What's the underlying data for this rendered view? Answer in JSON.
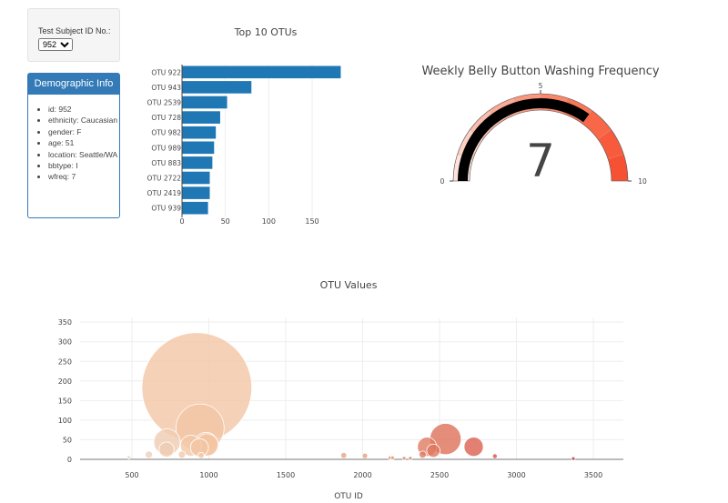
{
  "selector": {
    "label": "Test Subject ID No.:",
    "selected": "952"
  },
  "demographic": {
    "title": "Demographic Info",
    "items": [
      "id: 952",
      "ethnicity: Caucasian",
      "gender: F",
      "age: 51",
      "location: Seattle/WA",
      "bbtype: I",
      "wfreq: 7"
    ]
  },
  "colors": {
    "bar": "#1f77b4",
    "panel": "#337ab7",
    "gauge_needle": "#000000"
  },
  "chart_data": [
    {
      "type": "bar",
      "orientation": "horizontal",
      "title": "Top 10 OTUs",
      "categories": [
        "OTU 922",
        "OTU 943",
        "OTU 2539",
        "OTU 728",
        "OTU 982",
        "OTU 989",
        "OTU 883",
        "OTU 2722",
        "OTU 2419",
        "OTU 939"
      ],
      "values": [
        183,
        80,
        52,
        44,
        39,
        37,
        35,
        32,
        32,
        30
      ],
      "xticks": [
        0,
        50,
        100,
        150
      ],
      "xlim": [
        0,
        190
      ],
      "grid": true
    },
    {
      "type": "gauge",
      "title": "Weekly Belly Button Washing Frequency",
      "value": 7,
      "range": [
        0,
        10
      ],
      "ticks": [
        0,
        5,
        10
      ],
      "steps": [
        {
          "range": [
            0,
            1
          ],
          "color": "#fde2dc"
        },
        {
          "range": [
            1,
            2
          ],
          "color": "#fcd0c4"
        },
        {
          "range": [
            2,
            3
          ],
          "color": "#fbbdac"
        },
        {
          "range": [
            3,
            4
          ],
          "color": "#fbaa95"
        },
        {
          "range": [
            4,
            5
          ],
          "color": "#fa987f"
        },
        {
          "range": [
            5,
            6
          ],
          "color": "#f98769"
        },
        {
          "range": [
            6,
            7
          ],
          "color": "#f97756"
        },
        {
          "range": [
            7,
            8
          ],
          "color": "#f86848"
        },
        {
          "range": [
            8,
            9
          ],
          "color": "#f75b3c"
        },
        {
          "range": [
            9,
            10
          ],
          "color": "#f65132"
        }
      ]
    },
    {
      "type": "scatter",
      "subtype": "bubble",
      "title": "OTU Values",
      "xlabel": "OTU ID",
      "ylabel": "",
      "xlim": [
        230,
        3700
      ],
      "ylim": [
        0,
        360
      ],
      "xticks": [
        500,
        1000,
        1500,
        2000,
        2500,
        3000,
        3500
      ],
      "yticks": [
        0,
        50,
        100,
        150,
        200,
        250,
        300,
        350
      ],
      "grid": true,
      "points": [
        [
          922,
          183
        ],
        [
          943,
          80
        ],
        [
          2539,
          52
        ],
        [
          728,
          44
        ],
        [
          982,
          39
        ],
        [
          989,
          37
        ],
        [
          883,
          35
        ],
        [
          2722,
          32
        ],
        [
          2419,
          32
        ],
        [
          939,
          30
        ],
        [
          725,
          25
        ],
        [
          2460,
          22
        ],
        [
          610,
          12
        ],
        [
          825,
          12
        ],
        [
          2390,
          12
        ],
        [
          950,
          10
        ],
        [
          1877,
          10
        ],
        [
          2015,
          9
        ],
        [
          2860,
          8
        ],
        [
          480,
          5
        ],
        [
          2178,
          4
        ],
        [
          2195,
          4
        ],
        [
          2270,
          3
        ],
        [
          2310,
          3
        ],
        [
          3370,
          2
        ]
      ]
    }
  ]
}
